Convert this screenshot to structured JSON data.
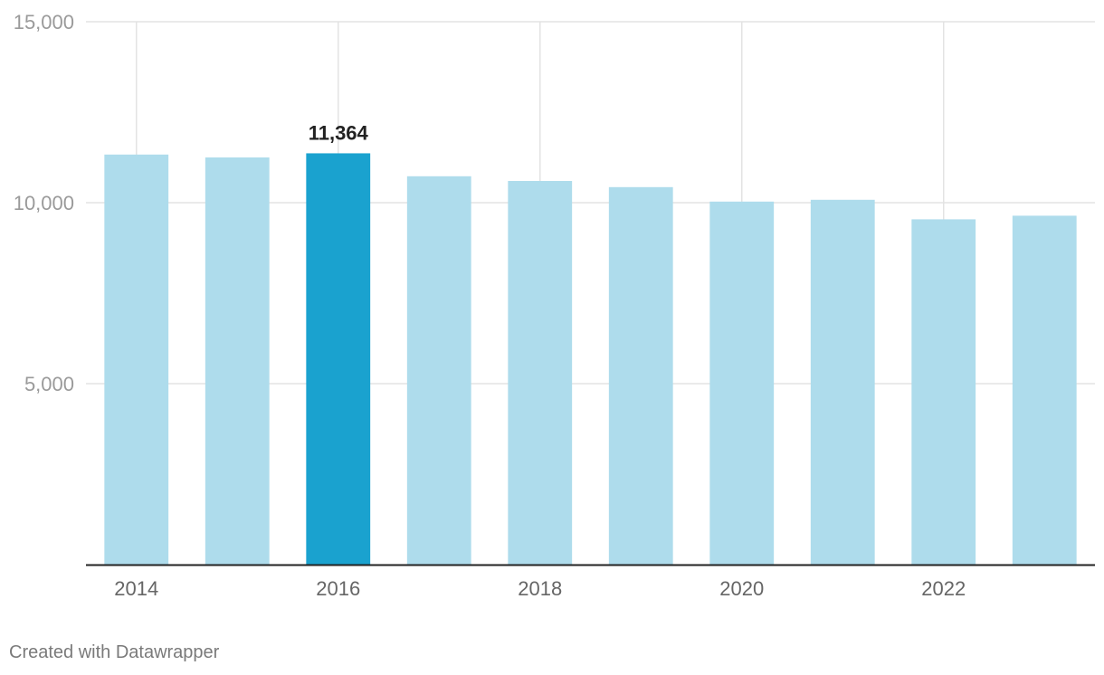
{
  "chart_data": {
    "type": "bar",
    "categories": [
      "2014",
      "2015",
      "2016",
      "2017",
      "2018",
      "2019",
      "2020",
      "2021",
      "2022",
      "2023"
    ],
    "values": [
      11330,
      11250,
      11364,
      10730,
      10600,
      10430,
      10030,
      10080,
      9540,
      9640
    ],
    "highlight_category": "2016",
    "data_labels": [
      {
        "category": "2016",
        "text": "11,364"
      }
    ],
    "x_tick_labels": [
      "2014",
      "2016",
      "2018",
      "2020",
      "2022"
    ],
    "y_ticks": [
      5000,
      10000,
      15000
    ],
    "y_tick_labels": [
      "5,000",
      "10,000",
      "15,000"
    ],
    "ylim": [
      0,
      15000
    ],
    "grid": true,
    "colors": {
      "bar": "#aedcec",
      "highlight": "#1aa2cf",
      "grid": "#e3e3e3",
      "axis": "#222222"
    }
  },
  "footer": {
    "credit": "Created with Datawrapper"
  }
}
